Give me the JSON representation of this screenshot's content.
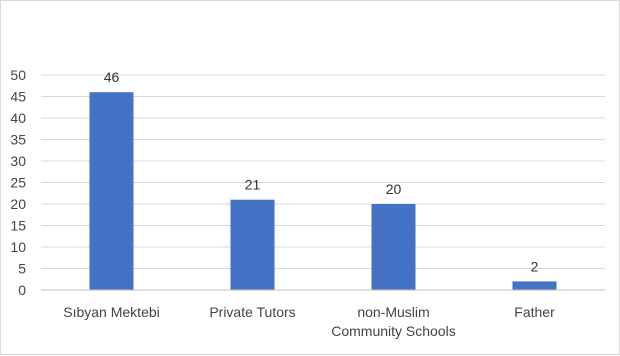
{
  "chart_data": {
    "type": "bar",
    "title": "",
    "xlabel": "",
    "ylabel": "",
    "categories": [
      [
        "Sıbyan Mektebi"
      ],
      [
        "Private Tutors"
      ],
      [
        "non-Muslim",
        "Community Schools"
      ],
      [
        "Father"
      ]
    ],
    "values": [
      46,
      21,
      20,
      2
    ],
    "ylim": [
      0,
      50
    ],
    "yticks": [
      0,
      5,
      10,
      15,
      20,
      25,
      30,
      35,
      40,
      45,
      50
    ],
    "grid": true,
    "legend": "none",
    "colors": {
      "bar": "#4472C4",
      "grid": "#d9d9d9",
      "axis": "#bfbfbf",
      "text": "#444444"
    }
  }
}
